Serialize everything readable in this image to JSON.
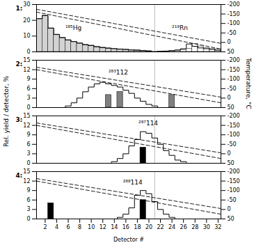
{
  "chart_data": [
    {
      "type": "bar",
      "title": "1:",
      "xlim": [
        0.5,
        32.5
      ],
      "ylim": [
        0,
        30
      ],
      "yticks": [
        0,
        10,
        20,
        30
      ],
      "y2lim": [
        50,
        -200
      ],
      "y2ticks": [
        50,
        0,
        -50,
        -100,
        -150,
        -200
      ],
      "tick_labels": "y",
      "series": [
        {
          "type": "line",
          "line_style": "dashed",
          "color": "black",
          "x": [
            0.5,
            32.5
          ],
          "values": [
            27,
            5.4
          ]
        },
        {
          "type": "line",
          "line_style": "dashed",
          "color": "black",
          "x": [
            0.5,
            32.5
          ],
          "values": [
            25.2,
            1.8
          ]
        },
        {
          "type": "step",
          "color": "black",
          "x": [
            1,
            2,
            3,
            4,
            5,
            6,
            7,
            8,
            9,
            10,
            11,
            12,
            13,
            14,
            15,
            16,
            17,
            18,
            19,
            20,
            21,
            22,
            23,
            24,
            25,
            26,
            27,
            28,
            29,
            30,
            31,
            32
          ],
          "values": [
            21,
            23,
            15,
            11,
            9,
            7.5,
            6.5,
            5.5,
            4.5,
            4,
            3.2,
            2.7,
            2.3,
            2,
            1.7,
            1.5,
            1.2,
            1,
            0.8,
            0.5,
            0.2,
            0.3,
            0.5,
            0.8,
            1.2,
            2,
            5,
            3.5,
            2.5,
            2,
            1.5,
            1
          ]
        },
        {
          "type": "bar",
          "color": "lightgray",
          "x": [
            1,
            2,
            3,
            4,
            5,
            6,
            7,
            8,
            9,
            10,
            11,
            12,
            13,
            14,
            15,
            16,
            17,
            18,
            19,
            20
          ],
          "values": [
            21,
            23,
            15,
            11,
            9,
            7.5,
            6.5,
            5.5,
            4.5,
            4,
            3.2,
            2.7,
            2.3,
            2,
            1.7,
            1.5,
            1.2,
            1,
            0.8,
            0.5
          ]
        },
        {
          "type": "bar",
          "color": "white",
          "x": [
            22,
            23,
            24,
            25,
            26,
            27,
            28,
            29,
            30,
            31,
            32
          ],
          "values": [
            0.2,
            0.3,
            0.5,
            0.8,
            1.2,
            2,
            5,
            3.5,
            2.5,
            2,
            1.5
          ]
        },
        {
          "type": "rule",
          "color": "#aaaaaa",
          "x": [
            21
          ]
        }
      ],
      "annotations": [
        {
          "text": "¹⁸⁵Hg",
          "x": 5.5,
          "y": 14
        },
        {
          "text": "²¹⁹Rn",
          "x": 24.0,
          "y": 14
        }
      ]
    },
    {
      "type": "bar",
      "title": "2:",
      "xlim": [
        0.5,
        32.5
      ],
      "ylim": [
        0,
        15
      ],
      "yticks": [
        0,
        3,
        6,
        9,
        12,
        15
      ],
      "y2lim": [
        50,
        -200
      ],
      "y2ticks": [
        50,
        0,
        -50,
        -100,
        -150,
        -200
      ],
      "ylabel": "Rel. yield / detector, %",
      "y2label": "Temperature, °C",
      "tick_labels": "y",
      "series": [
        {
          "type": "line",
          "line_style": "dashed",
          "color": "black",
          "x": [
            0.5,
            32.5
          ],
          "values": [
            12.78,
            3.3
          ]
        },
        {
          "type": "line",
          "line_style": "dashed",
          "color": "black",
          "x": [
            0.5,
            32.5
          ],
          "values": [
            12,
            1.5
          ]
        },
        {
          "type": "step",
          "color": "black",
          "x": [
            1,
            2,
            3,
            4,
            5,
            6,
            7,
            8,
            9,
            10,
            11,
            12,
            13,
            14,
            15,
            16,
            17,
            18,
            19,
            20,
            21,
            22,
            23,
            24,
            25,
            26,
            27,
            28,
            29,
            30,
            31,
            32
          ],
          "values": [
            0,
            0,
            0,
            0,
            0,
            0.5,
            1.5,
            3,
            5,
            6.5,
            7.5,
            8,
            7.5,
            7,
            6.5,
            5.5,
            4.5,
            3,
            2,
            1,
            0.5,
            0,
            0,
            0,
            0,
            0,
            0,
            0,
            0,
            0,
            0,
            0
          ]
        },
        {
          "type": "bar",
          "color": "gray",
          "x": [
            13,
            15,
            24
          ],
          "values": [
            4,
            5,
            4
          ]
        },
        {
          "type": "rule",
          "color": "#aaaaaa",
          "x": [
            21
          ]
        }
      ],
      "annotations": [
        {
          "text": "²⁸³112",
          "x": 13,
          "y": 10.5
        }
      ]
    },
    {
      "type": "bar",
      "title": "3:",
      "xlim": [
        0.5,
        32.5
      ],
      "ylim": [
        0,
        15
      ],
      "yticks": [
        0,
        3,
        6,
        9,
        12,
        15
      ],
      "y2lim": [
        50,
        -200
      ],
      "y2ticks": [
        50,
        0,
        -50,
        -100,
        -150,
        -200
      ],
      "tick_labels": "y",
      "series": [
        {
          "type": "line",
          "line_style": "dashed",
          "color": "black",
          "x": [
            0.5,
            32.5
          ],
          "values": [
            12.78,
            3.3
          ]
        },
        {
          "type": "line",
          "line_style": "dashed",
          "color": "black",
          "x": [
            0.5,
            32.5
          ],
          "values": [
            12,
            1.5
          ]
        },
        {
          "type": "step",
          "color": "black",
          "x": [
            1,
            2,
            3,
            4,
            5,
            6,
            7,
            8,
            9,
            10,
            11,
            12,
            13,
            14,
            15,
            16,
            17,
            18,
            19,
            20,
            21,
            22,
            23,
            24,
            25,
            26,
            27,
            28,
            29,
            30,
            31,
            32
          ],
          "values": [
            0,
            0,
            0,
            0,
            0,
            0,
            0,
            0,
            0,
            0,
            0,
            0,
            0,
            0.5,
            1.5,
            3,
            5.5,
            7.5,
            10,
            9.5,
            8,
            6,
            4,
            2.5,
            1,
            0.5,
            0,
            0,
            0,
            0,
            0,
            0
          ]
        },
        {
          "type": "bar",
          "color": "black",
          "x": [
            19
          ],
          "values": [
            5
          ]
        },
        {
          "type": "rule",
          "color": "#aaaaaa",
          "x": [
            21
          ]
        }
      ],
      "annotations": [
        {
          "text": "²⁸⁷114",
          "x": 18.2,
          "y": 12
        }
      ]
    },
    {
      "type": "bar",
      "title": "4:",
      "xlim": [
        0.5,
        32.5
      ],
      "xticks": [
        2,
        4,
        6,
        8,
        10,
        12,
        14,
        16,
        18,
        20,
        22,
        24,
        26,
        28,
        30,
        32
      ],
      "xlabel": "Detector #",
      "ylim": [
        0,
        15
      ],
      "yticks": [
        0,
        3,
        6,
        9,
        12,
        15
      ],
      "y2lim": [
        50,
        -200
      ],
      "y2ticks": [
        50,
        0,
        -50,
        -100,
        -150,
        -200
      ],
      "series": [
        {
          "type": "line",
          "line_style": "dashed",
          "color": "black",
          "x": [
            0.5,
            32.5
          ],
          "values": [
            12.78,
            3.3
          ]
        },
        {
          "type": "line",
          "line_style": "dashed",
          "color": "black",
          "x": [
            0.5,
            32.5
          ],
          "values": [
            12,
            1.5
          ]
        },
        {
          "type": "step",
          "color": "black",
          "x": [
            1,
            2,
            3,
            4,
            5,
            6,
            7,
            8,
            9,
            10,
            11,
            12,
            13,
            14,
            15,
            16,
            17,
            18,
            19,
            20,
            21,
            22,
            23,
            24,
            25,
            26,
            27,
            28,
            29,
            30,
            31,
            32
          ],
          "values": [
            0,
            0,
            0,
            0,
            0,
            0,
            0,
            0,
            0,
            0,
            0,
            0,
            0,
            0,
            0.5,
            1.5,
            3.5,
            7.5,
            9,
            8,
            5.5,
            3,
            1.5,
            0.5,
            0,
            0,
            0,
            0,
            0,
            0,
            0,
            0
          ]
        },
        {
          "type": "bar",
          "color": "black",
          "x": [
            3,
            19
          ],
          "values": [
            5,
            6
          ]
        },
        {
          "type": "rule",
          "color": "#aaaaaa",
          "x": [
            21
          ]
        }
      ],
      "annotations": [
        {
          "text": "²⁸⁸114",
          "x": 15.5,
          "y": 11
        }
      ]
    }
  ]
}
